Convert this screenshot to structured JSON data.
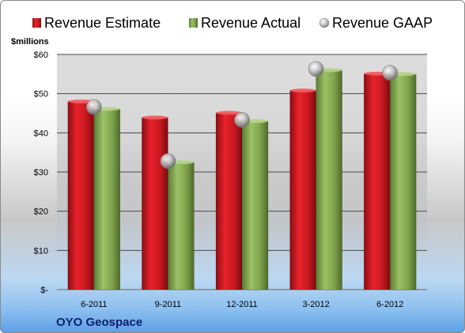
{
  "chart_data": {
    "type": "bar",
    "categories": [
      "6-2011",
      "9-2011",
      "12-2011",
      "3-2012",
      "6-2012"
    ],
    "series": [
      {
        "name": "Revenue Estimate",
        "values": [
          48.0,
          43.9,
          45.1,
          50.8,
          55.1
        ],
        "color": "#e01b24",
        "mark": "bar"
      },
      {
        "name": "Revenue Actual",
        "values": [
          46.1,
          32.5,
          43.0,
          56.0,
          55.0
        ],
        "color": "#8db15a",
        "mark": "bar"
      },
      {
        "name": "Revenue GAAP",
        "values": [
          46.6,
          32.8,
          43.3,
          56.3,
          55.3
        ],
        "color": "#b9b9b9",
        "mark": "sphere"
      }
    ],
    "ylim": [
      0,
      60
    ],
    "yticks": [
      {
        "value": 0,
        "label": "$-"
      },
      {
        "value": 10,
        "label": "$10"
      },
      {
        "value": 20,
        "label": "$20"
      },
      {
        "value": 30,
        "label": "$30"
      },
      {
        "value": 40,
        "label": "$40"
      },
      {
        "value": 50,
        "label": "$50"
      },
      {
        "value": 60,
        "label": "$60"
      }
    ],
    "ylabel": "$millions",
    "xlabel": "",
    "grid": true,
    "legend": "top",
    "company": "OYO Geospace"
  }
}
